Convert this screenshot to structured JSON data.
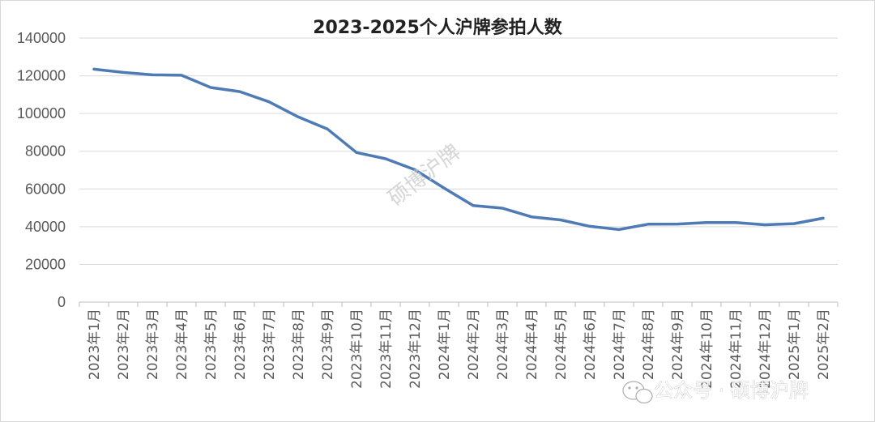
{
  "chart_data": {
    "type": "line",
    "title": "2023-2025个人沪牌参拍人数",
    "xlabel": "",
    "ylabel": "",
    "ylim": [
      0,
      140000
    ],
    "yticks": [
      0,
      20000,
      40000,
      60000,
      80000,
      100000,
      120000,
      140000
    ],
    "grid": true,
    "legend": "none",
    "categories": [
      "2023年1月",
      "2023年2月",
      "2023年3月",
      "2023年4月",
      "2023年5月",
      "2023年6月",
      "2023年7月",
      "2023年8月",
      "2023年9月",
      "2023年10月",
      "2023年11月",
      "2023年12月",
      "2024年1月",
      "2024年2月",
      "2024年3月",
      "2024年4月",
      "2024年5月",
      "2024年6月",
      "2024年7月",
      "2024年8月",
      "2024年9月",
      "2024年10月",
      "2024年11月",
      "2024年12月",
      "2025年1月",
      "2025年2月"
    ],
    "series": [
      {
        "values": [
          123500,
          121800,
          120500,
          120300,
          113800,
          111600,
          106200,
          98200,
          91800,
          79300,
          76000,
          70200,
          60500,
          51200,
          49800,
          45200,
          43600,
          40200,
          38500,
          41300,
          41400,
          42200,
          42200,
          41000,
          41600,
          44500
        ]
      }
    ]
  },
  "colors": {
    "line": "#4e7bb5",
    "grid": "#d9d9d9",
    "axis": "#bfbfbf",
    "text": "#595959",
    "title": "#222222",
    "background": "#ffffff"
  },
  "watermark": {
    "text": "硕博沪牌"
  },
  "badge": {
    "icon": "wechat-icon",
    "text": "公众号 · 硕博沪牌"
  }
}
